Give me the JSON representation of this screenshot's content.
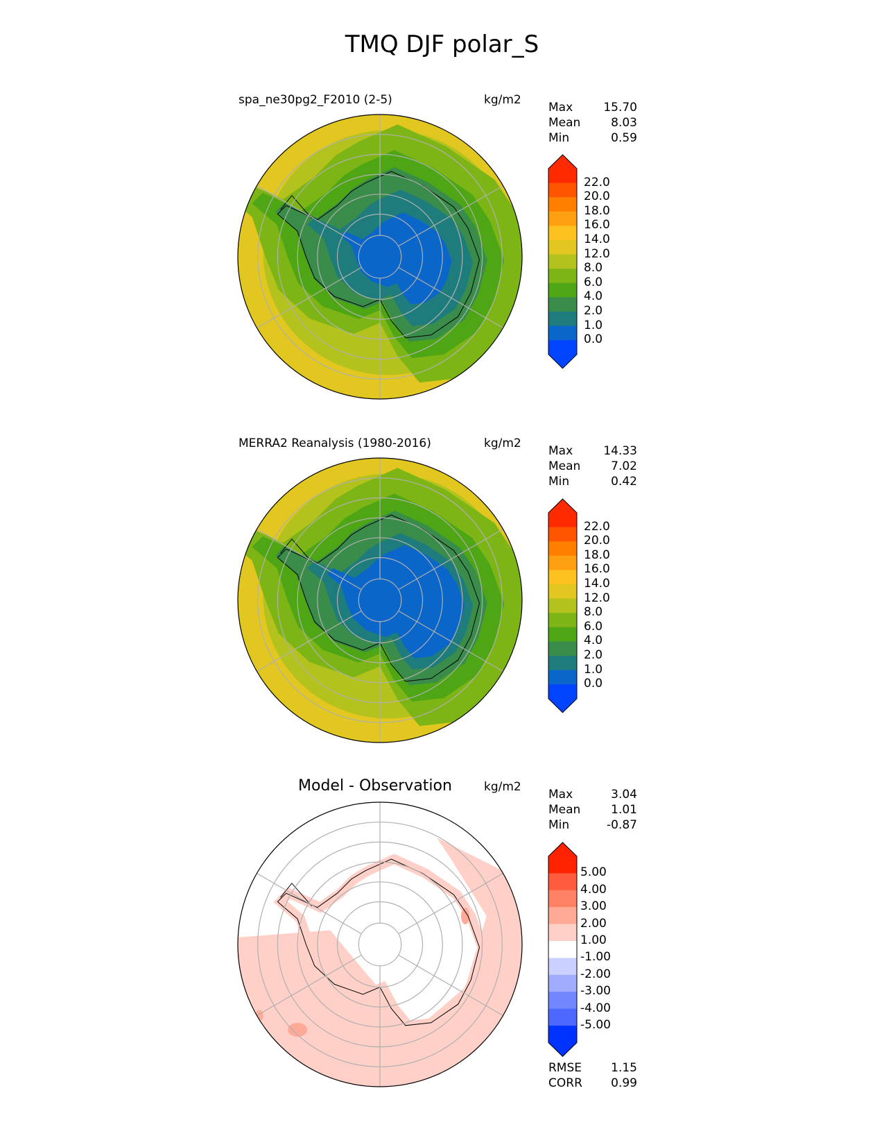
{
  "title": "TMQ DJF polar_S",
  "panels": [
    {
      "name": "model",
      "title": "spa_ne30pg2_F2010 (2-5)",
      "units": "kg/m2",
      "stats": [
        [
          "Max",
          "15.70"
        ],
        [
          "Mean",
          "8.03"
        ],
        [
          "Min",
          "0.59"
        ]
      ],
      "ticks": [
        "22.0",
        "20.0",
        "18.0",
        "16.0",
        "14.0",
        "12.0",
        "8.0",
        "6.0",
        "4.0",
        "2.0",
        "1.0",
        "0.0"
      ]
    },
    {
      "name": "obs",
      "title": "MERRA2 Reanalysis (1980-2016)",
      "units": "kg/m2",
      "stats": [
        [
          "Max",
          "14.33"
        ],
        [
          "Mean",
          "7.02"
        ],
        [
          "Min",
          "0.42"
        ]
      ],
      "ticks": [
        "22.0",
        "20.0",
        "18.0",
        "16.0",
        "14.0",
        "12.0",
        "8.0",
        "6.0",
        "4.0",
        "2.0",
        "1.0",
        "0.0"
      ]
    },
    {
      "name": "diff",
      "title": "Model - Observation",
      "units": "kg/m2",
      "stats": [
        [
          "Max",
          "3.04"
        ],
        [
          "Mean",
          "1.01"
        ],
        [
          "Min",
          "-0.87"
        ]
      ],
      "ticks": [
        "5.00",
        "4.00",
        "3.00",
        "2.00",
        "1.00",
        "-1.00",
        "-2.00",
        "-3.00",
        "-4.00",
        "-5.00"
      ],
      "extra_stats": [
        [
          "RMSE",
          "1.15"
        ],
        [
          "CORR",
          "0.99"
        ]
      ]
    }
  ],
  "colors": {
    "field_cbar": [
      "#ff2a00",
      "#ff5500",
      "#ff7f00",
      "#fea010",
      "#fdc21f",
      "#e1c720",
      "#b4c21e",
      "#7eb516",
      "#4ea614",
      "#3a8c4a",
      "#1f7c7c",
      "#0a66c8",
      "#0044ff"
    ],
    "diff_cbar": [
      "#ff2200",
      "#ff5b3e",
      "#ff8266",
      "#ffaa96",
      "#ffd0c7",
      "#ffffff",
      "#cad0ff",
      "#a1acff",
      "#7286ff",
      "#4c68ff",
      "#0033ff"
    ]
  },
  "chart_data": [
    {
      "type": "heatmap",
      "title": "spa_ne30pg2_F2010 (2-5)",
      "units": "kg/m2",
      "projection": "south polar stereographic",
      "colorbar_levels": [
        0,
        1,
        2,
        4,
        6,
        8,
        12,
        14,
        16,
        18,
        20,
        22
      ],
      "colorbar_extend": "both",
      "stats": {
        "max": 15.7,
        "mean": 8.03,
        "min": 0.59
      }
    },
    {
      "type": "heatmap",
      "title": "MERRA2 Reanalysis (1980-2016)",
      "units": "kg/m2",
      "projection": "south polar stereographic",
      "colorbar_levels": [
        0,
        1,
        2,
        4,
        6,
        8,
        12,
        14,
        16,
        18,
        20,
        22
      ],
      "colorbar_extend": "both",
      "stats": {
        "max": 14.33,
        "mean": 7.02,
        "min": 0.42
      }
    },
    {
      "type": "heatmap",
      "title": "Model - Observation",
      "units": "kg/m2",
      "projection": "south polar stereographic",
      "colorbar_levels": [
        -5,
        -4,
        -3,
        -2,
        -1,
        1,
        2,
        3,
        4,
        5
      ],
      "colorbar_extend": "both",
      "stats": {
        "max": 3.04,
        "mean": 1.01,
        "min": -0.87,
        "rmse": 1.15,
        "corr": 0.99
      }
    }
  ]
}
